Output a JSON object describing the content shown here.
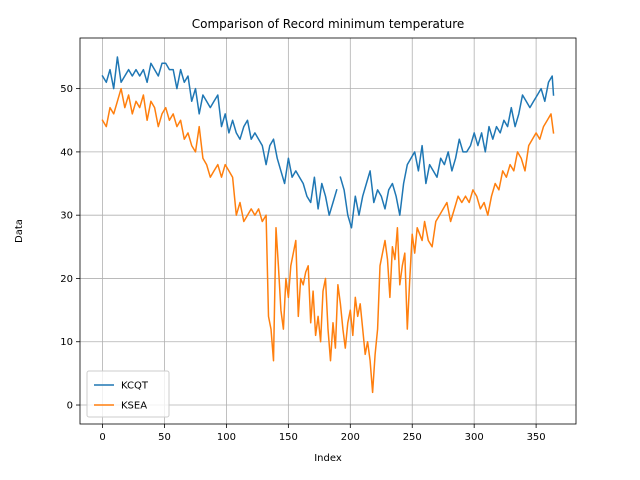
{
  "chart_data": {
    "type": "line",
    "title": "Comparison of Record minimum temperature",
    "xlabel": "Index",
    "ylabel": "Data",
    "xlim": [
      -18.2,
      382.2
    ],
    "ylim": [
      -3.0,
      58.0
    ],
    "xticks": [
      0,
      50,
      100,
      150,
      200,
      250,
      300,
      350
    ],
    "yticks": [
      0,
      10,
      20,
      30,
      40,
      50
    ],
    "grid": true,
    "legend_position": "lower-left",
    "series": [
      {
        "name": "KCQT",
        "color": "#1f77b4",
        "x": [
          0,
          3,
          6,
          9,
          12,
          15,
          18,
          21,
          24,
          27,
          30,
          33,
          36,
          39,
          42,
          45,
          48,
          51,
          54,
          57,
          60,
          63,
          66,
          69,
          72,
          75,
          78,
          81,
          84,
          87,
          90,
          93,
          96,
          99,
          102,
          105,
          108,
          111,
          114,
          117,
          120,
          123,
          126,
          129,
          132,
          135,
          138,
          141,
          144,
          147,
          150,
          153,
          156,
          159,
          162,
          165,
          168,
          171,
          174,
          177,
          180,
          183,
          186,
          189,
          192,
          195,
          198,
          201,
          204,
          207,
          210,
          213,
          216,
          219,
          222,
          225,
          228,
          231,
          234,
          237,
          240,
          243,
          246,
          249,
          252,
          255,
          258,
          261,
          264,
          267,
          270,
          273,
          276,
          279,
          282,
          285,
          288,
          291,
          294,
          297,
          300,
          303,
          306,
          309,
          312,
          315,
          318,
          321,
          324,
          327,
          330,
          333,
          336,
          339,
          342,
          345,
          348,
          351,
          354,
          357,
          360,
          363,
          364
        ],
        "values": [
          52,
          51,
          53,
          50,
          55,
          51,
          52,
          53,
          52,
          53,
          52,
          53,
          51,
          54,
          53,
          52,
          54,
          54,
          53,
          53,
          50,
          53,
          51,
          52,
          48,
          50,
          46,
          49,
          48,
          47,
          48,
          49,
          44,
          46,
          43,
          45,
          43,
          42,
          44,
          45,
          42,
          43,
          42,
          41,
          38,
          41,
          42,
          39,
          37,
          35,
          39,
          36,
          37,
          36,
          35,
          33,
          32,
          36,
          31,
          35,
          33,
          30,
          32,
          34,
          36,
          34,
          30,
          28,
          33,
          30,
          33,
          35,
          37,
          32,
          34,
          33,
          31,
          34,
          35,
          33,
          30,
          35,
          38,
          39,
          40,
          37,
          41,
          35,
          38,
          37,
          36,
          39,
          38,
          40,
          37,
          39,
          42,
          40,
          40,
          41,
          43,
          41,
          43,
          40,
          44,
          42,
          44,
          43,
          45,
          44,
          47,
          44,
          46,
          49,
          48,
          47,
          48,
          49,
          50,
          48,
          51,
          52,
          49
        ],
        "segments": [
          [
            0,
            63
          ],
          [
            64,
            122
          ]
        ]
      },
      {
        "name": "KSEA",
        "color": "#ff7f0e",
        "x": [
          0,
          3,
          6,
          9,
          12,
          15,
          18,
          21,
          24,
          27,
          30,
          33,
          36,
          39,
          42,
          45,
          48,
          51,
          54,
          57,
          60,
          63,
          66,
          69,
          72,
          75,
          78,
          81,
          84,
          87,
          90,
          93,
          96,
          99,
          102,
          105,
          108,
          111,
          114,
          117,
          120,
          123,
          126,
          129,
          132,
          134,
          136,
          138,
          140,
          142,
          144,
          146,
          148,
          150,
          152,
          154,
          156,
          158,
          160,
          162,
          164,
          166,
          168,
          170,
          172,
          174,
          176,
          178,
          180,
          182,
          184,
          186,
          188,
          190,
          192,
          194,
          196,
          198,
          200,
          202,
          204,
          206,
          208,
          210,
          212,
          214,
          216,
          218,
          220,
          222,
          224,
          226,
          228,
          230,
          232,
          234,
          236,
          238,
          240,
          242,
          244,
          246,
          248,
          250,
          252,
          254,
          256,
          258,
          260,
          263,
          266,
          269,
          272,
          275,
          278,
          281,
          284,
          287,
          290,
          293,
          296,
          299,
          302,
          305,
          308,
          311,
          314,
          317,
          320,
          323,
          326,
          329,
          332,
          335,
          338,
          341,
          344,
          347,
          350,
          353,
          356,
          359,
          362,
          364
        ],
        "values": [
          45,
          44,
          47,
          46,
          48,
          50,
          47,
          49,
          46,
          48,
          47,
          49,
          45,
          48,
          47,
          44,
          46,
          47,
          45,
          46,
          44,
          45,
          42,
          43,
          41,
          40,
          44,
          39,
          38,
          36,
          37,
          38,
          36,
          38,
          37,
          36,
          30,
          32,
          29,
          30,
          31,
          30,
          31,
          29,
          30,
          14,
          12,
          7,
          28,
          22,
          15,
          12,
          20,
          17,
          22,
          24,
          26,
          14,
          20,
          19,
          21,
          22,
          13,
          18,
          11,
          14,
          10,
          18,
          20,
          12,
          7,
          13,
          9,
          19,
          16,
          12,
          9,
          13,
          15,
          11,
          17,
          14,
          16,
          12,
          8,
          10,
          7,
          2,
          8,
          12,
          22,
          24,
          26,
          23,
          17,
          25,
          23,
          28,
          19,
          22,
          24,
          12,
          20,
          27,
          24,
          28,
          27,
          26,
          29,
          26,
          25,
          29,
          30,
          31,
          32,
          29,
          31,
          33,
          32,
          33,
          32,
          34,
          33,
          31,
          32,
          30,
          33,
          35,
          34,
          37,
          36,
          38,
          37,
          40,
          39,
          37,
          41,
          42,
          43,
          42,
          44,
          45,
          46,
          43
        ],
        "segments": [
          [
            0,
            143
          ]
        ]
      }
    ]
  }
}
